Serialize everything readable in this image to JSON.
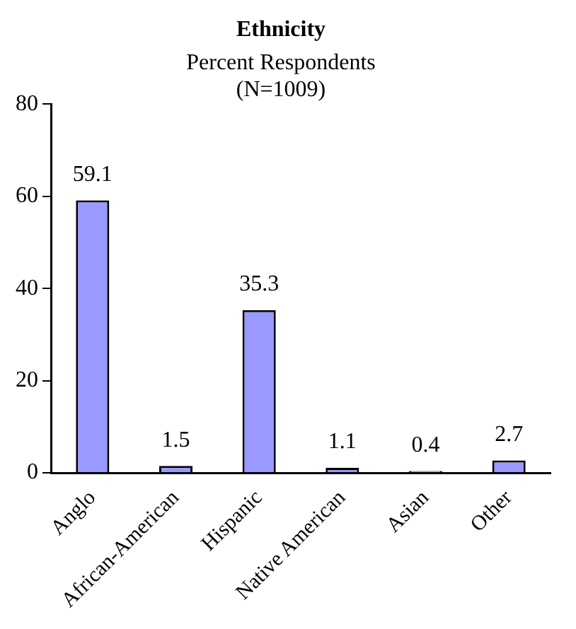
{
  "chart_data": {
    "type": "bar",
    "title": "Ethnicity",
    "subtitle": "Percent Respondents\n(N=1009)",
    "categories": [
      "Anglo",
      "African-American",
      "Hispanic",
      "Native American",
      "Asian",
      "Other"
    ],
    "values": [
      59.1,
      1.5,
      35.3,
      1.1,
      0.4,
      2.7
    ],
    "color": "#9999ff",
    "ylim": [
      0,
      80
    ],
    "yticks": [
      0,
      20,
      40,
      60,
      80
    ],
    "grid": false,
    "legend": false,
    "data_labels": true
  }
}
